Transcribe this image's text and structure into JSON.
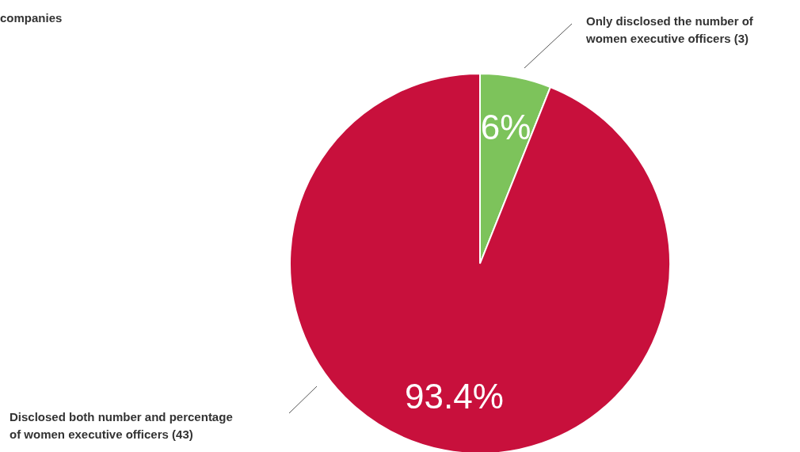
{
  "chart_data": {
    "type": "pie",
    "categories": [
      "Only disclosed the number of women executive officers (3)",
      "Disclosed both number and percentage of women executive officers (43)"
    ],
    "values": [
      6,
      93.4
    ],
    "colors": [
      "#7dc35b",
      "#c8103c"
    ],
    "value_labels": [
      "6%",
      "93.4%"
    ],
    "annotations": [
      "companies"
    ]
  }
}
